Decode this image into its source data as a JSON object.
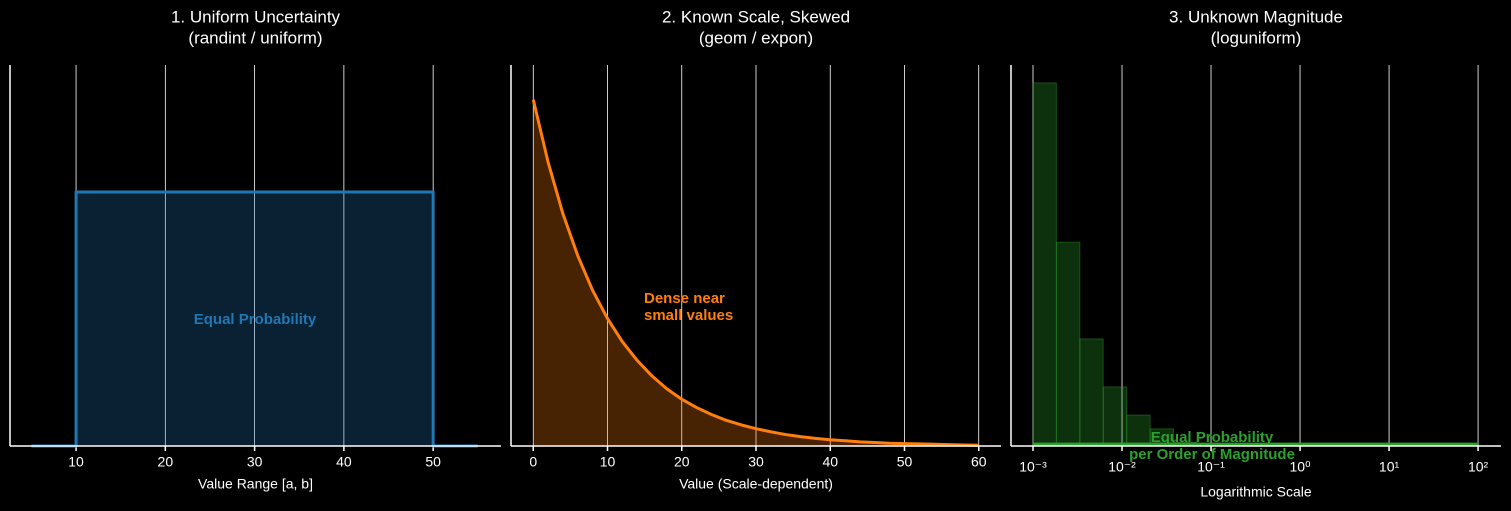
{
  "chart_data": [
    {
      "type": "line",
      "title": "1. Uniform Uncertainty",
      "subtitle": "(randint / uniform)",
      "xlabel": "Value Range [a, b]",
      "x": [
        5,
        10,
        10,
        50,
        50,
        55
      ],
      "series": [
        {
          "color": "#1f77b4",
          "values": [
            0,
            0,
            0.025,
            0.025,
            0,
            0
          ]
        }
      ],
      "fill": true,
      "xlim": [
        2.6,
        57.6
      ],
      "ylim": [
        0,
        0.0375
      ],
      "xticks": [
        10,
        20,
        30,
        40,
        50
      ],
      "grid": true,
      "annotation": [
        "Equal Probability"
      ]
    },
    {
      "type": "line",
      "title": "2. Known Scale, Skewed",
      "subtitle": "(geom / expon)",
      "xlabel": "Value (Scale-dependent)",
      "x": [
        0,
        2,
        4,
        6,
        8,
        10,
        12,
        14,
        16,
        18,
        20,
        22,
        24,
        26,
        28,
        30,
        32,
        34,
        36,
        38,
        40,
        42,
        44,
        46,
        48,
        50,
        52,
        54,
        56,
        58,
        60
      ],
      "series": [
        {
          "color": "#ff7f0e",
          "values": [
            0.1,
            0.0819,
            0.067,
            0.0549,
            0.0449,
            0.0368,
            0.0301,
            0.0247,
            0.0202,
            0.0165,
            0.0135,
            0.0111,
            0.0091,
            0.0074,
            0.0061,
            0.005,
            0.0041,
            0.0033,
            0.0027,
            0.0022,
            0.0018,
            0.0015,
            0.0012,
            0.001,
            0.0008,
            0.0007,
            0.0006,
            0.0005,
            0.0004,
            0.0003,
            0.0002
          ]
        }
      ],
      "fill": true,
      "xlim": [
        -3,
        63
      ],
      "ylim": [
        0,
        0.11
      ],
      "xticks": [
        0,
        10,
        20,
        30,
        40,
        50,
        60
      ],
      "grid": true,
      "annotation": [
        "Dense near",
        "small values"
      ]
    },
    {
      "type": "histogram",
      "title": "3. Unknown Magnitude",
      "subtitle": "(loguniform)",
      "xlabel": "Logarithmic Scale",
      "xscale": "log",
      "bins": [
        0.001,
        0.00183,
        0.00336,
        0.00615,
        0.0113,
        0.0207,
        0.0379,
        0.0695
      ],
      "values": [
        95.3,
        53.5,
        28.1,
        15.5,
        8.1,
        4.5,
        1.0
      ],
      "color": "#2ca02c",
      "overlay": {
        "x": [
          0.001,
          100
        ],
        "values": [
          0.5,
          0.5
        ],
        "color": "#2ca02c"
      },
      "xlim": [
        0.000566,
        181
      ],
      "ylim": [
        0,
        100
      ],
      "xticks": [
        {
          "value": 0.001,
          "label": "10⁻³"
        },
        {
          "value": 0.01,
          "label": "10⁻²"
        },
        {
          "value": 0.1,
          "label": "10⁻¹"
        },
        {
          "value": 1,
          "label": "10⁰"
        },
        {
          "value": 10,
          "label": "10¹"
        },
        {
          "value": 100,
          "label": "10²"
        }
      ],
      "grid": true,
      "annotation": [
        "Equal Probability",
        "per Order of Magnitude"
      ]
    }
  ]
}
